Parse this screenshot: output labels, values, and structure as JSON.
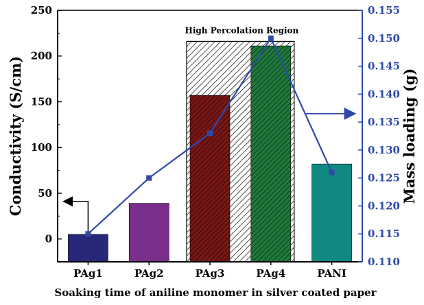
{
  "chart_data": {
    "type": "bar",
    "xlabel": "Soaking time of aniline monomer in silver coated paper",
    "ylabel": "Conductivity (S/cm)",
    "y2label": "Mass loading (g)",
    "categories": [
      "PAg1",
      "PAg2",
      "PAg3",
      "PAg4",
      "PANI"
    ],
    "series": [
      {
        "values": [
          5,
          39,
          157,
          211,
          82
        ],
        "axis": "left",
        "kind": "bar",
        "colors": [
          "#27287a",
          "#7a2f8c",
          "#7a1716",
          "#1e7a3c",
          "#108a80"
        ],
        "hatched": [
          false,
          false,
          true,
          true,
          false
        ]
      },
      {
        "values": [
          0.115,
          0.125,
          0.133,
          0.15,
          0.126
        ],
        "axis": "right",
        "kind": "line",
        "color": "#2f48a8",
        "marker": "square"
      }
    ],
    "ylim": [
      -25,
      250
    ],
    "y2lim": [
      0.11,
      0.155
    ],
    "yticks": [
      "0",
      "50",
      "100",
      "150",
      "200",
      "250"
    ],
    "y2ticks": [
      "0.110",
      "0.115",
      "0.120",
      "0.125",
      "0.130",
      "0.135",
      "0.140",
      "0.145",
      "0.150",
      "0.155"
    ],
    "annotations": [
      {
        "text": "High Percolation Region",
        "type": "hatched-box",
        "x_range": [
          "PAg3",
          "PAg4"
        ],
        "y_range": [
          -25,
          216
        ]
      },
      {
        "type": "arrow",
        "direction": "left",
        "points_to": "left-axis"
      },
      {
        "type": "arrow",
        "direction": "right",
        "points_to": "right-axis"
      }
    ],
    "grid": false,
    "legend": "none"
  }
}
